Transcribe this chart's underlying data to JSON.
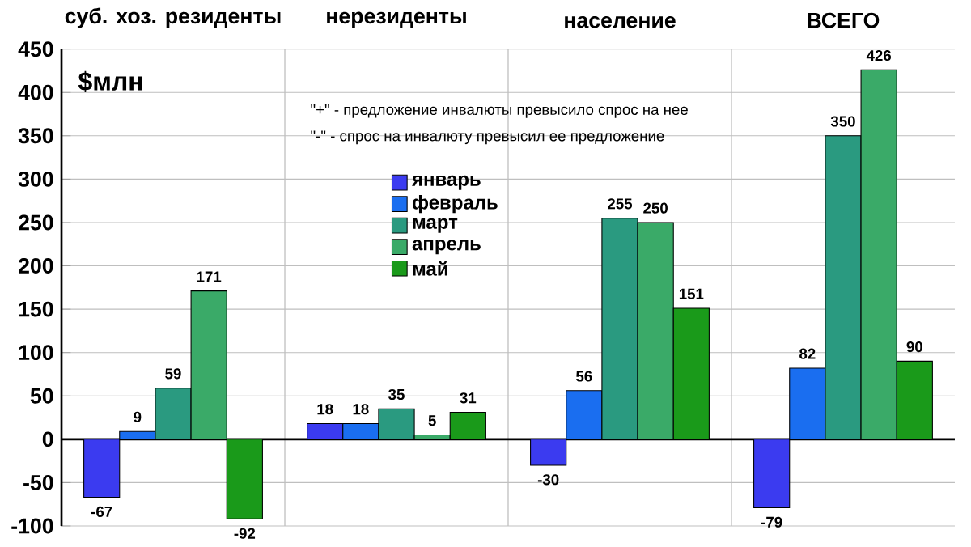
{
  "chart_data": {
    "type": "bar",
    "ylabel": "$млн",
    "categories": [
      "суб. хоз. резиденты",
      "нерезиденты",
      "население",
      "ВСЕГО"
    ],
    "series": [
      {
        "name": "январь",
        "color": "#3b3bf0",
        "values": [
          -67,
          18,
          -30,
          -79
        ]
      },
      {
        "name": "февраль",
        "color": "#1a6ef0",
        "values": [
          9,
          18,
          56,
          82
        ]
      },
      {
        "name": "март",
        "color": "#2a9a80",
        "values": [
          59,
          35,
          255,
          350
        ]
      },
      {
        "name": "апрель",
        "color": "#3aaa68",
        "values": [
          171,
          5,
          250,
          426
        ]
      },
      {
        "name": "май",
        "color": "#1a9a1a",
        "values": [
          -92,
          31,
          151,
          90
        ]
      }
    ],
    "annotations": [
      "\"+\" - предложение инвалюты превысило спрос на нее",
      "\"-\" - спрос на инвалюту превысил ее предложение"
    ],
    "ylim": [
      -100,
      450
    ],
    "yticks": [
      -100,
      -50,
      0,
      50,
      100,
      150,
      200,
      250,
      300,
      350,
      400,
      450
    ],
    "grid": true,
    "legend": "center left",
    "data_labels": true
  }
}
